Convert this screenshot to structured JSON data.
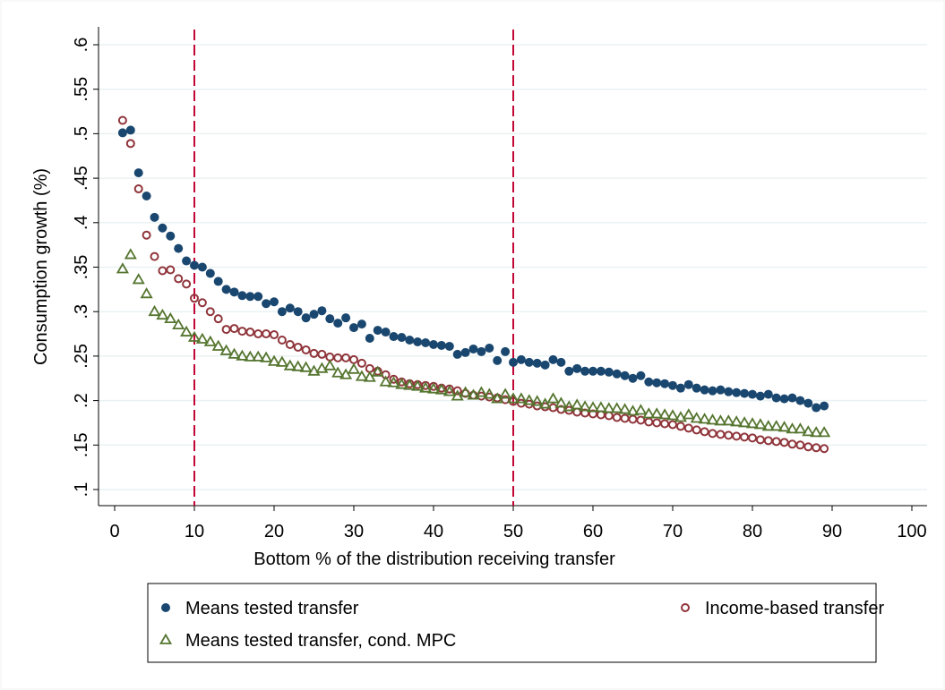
{
  "chart_data": {
    "type": "scatter",
    "x_label": "Bottom % of the distribution receiving transfer",
    "y_label": "Consumption growth (%)",
    "x": [
      1,
      2,
      3,
      4,
      5,
      6,
      7,
      8,
      9,
      10,
      11,
      12,
      13,
      14,
      15,
      16,
      17,
      18,
      19,
      20,
      21,
      22,
      23,
      24,
      25,
      26,
      27,
      28,
      29,
      30,
      31,
      32,
      33,
      34,
      35,
      36,
      37,
      38,
      39,
      40,
      41,
      42,
      43,
      44,
      45,
      46,
      47,
      48,
      49,
      50,
      51,
      52,
      53,
      54,
      55,
      56,
      57,
      58,
      59,
      60,
      61,
      62,
      63,
      64,
      65,
      66,
      67,
      68,
      69,
      70,
      71,
      72,
      73,
      74,
      75,
      76,
      77,
      78,
      79,
      80,
      81,
      82,
      83,
      84,
      85,
      86,
      87,
      88,
      89
    ],
    "series": [
      {
        "name": "Means tested transfer",
        "color": "#1a476f",
        "marker": "circle",
        "values": [
          0.501,
          0.504,
          0.456,
          0.43,
          0.406,
          0.394,
          0.385,
          0.371,
          0.357,
          0.352,
          0.35,
          0.343,
          0.334,
          0.325,
          0.322,
          0.318,
          0.317,
          0.317,
          0.309,
          0.311,
          0.3,
          0.304,
          0.3,
          0.293,
          0.297,
          0.301,
          0.292,
          0.287,
          0.293,
          0.282,
          0.286,
          0.27,
          0.279,
          0.277,
          0.272,
          0.271,
          0.268,
          0.266,
          0.265,
          0.263,
          0.262,
          0.261,
          0.252,
          0.254,
          0.258,
          0.255,
          0.259,
          0.245,
          0.255,
          0.243,
          0.246,
          0.243,
          0.242,
          0.24,
          0.246,
          0.243,
          0.233,
          0.236,
          0.233,
          0.233,
          0.233,
          0.232,
          0.23,
          0.228,
          0.225,
          0.228,
          0.221,
          0.22,
          0.219,
          0.217,
          0.214,
          0.218,
          0.214,
          0.212,
          0.211,
          0.212,
          0.21,
          0.209,
          0.208,
          0.207,
          0.205,
          0.207,
          0.203,
          0.202,
          0.203,
          0.2,
          0.197,
          0.192,
          0.194
        ]
      },
      {
        "name": "Income-based transfer",
        "color": "#90353b",
        "marker": "hollow-circle",
        "values": [
          0.515,
          0.489,
          0.438,
          0.386,
          0.362,
          0.346,
          0.347,
          0.337,
          0.331,
          0.315,
          0.31,
          0.3,
          0.292,
          0.28,
          0.281,
          0.278,
          0.277,
          0.275,
          0.275,
          0.274,
          0.268,
          0.263,
          0.26,
          0.257,
          0.253,
          0.252,
          0.249,
          0.248,
          0.248,
          0.246,
          0.242,
          0.236,
          0.233,
          0.229,
          0.224,
          0.221,
          0.219,
          0.218,
          0.217,
          0.216,
          0.214,
          0.213,
          0.211,
          0.208,
          0.206,
          0.205,
          0.204,
          0.203,
          0.201,
          0.199,
          0.197,
          0.196,
          0.194,
          0.193,
          0.192,
          0.19,
          0.189,
          0.187,
          0.186,
          0.185,
          0.184,
          0.183,
          0.181,
          0.18,
          0.179,
          0.178,
          0.176,
          0.175,
          0.174,
          0.173,
          0.171,
          0.169,
          0.167,
          0.165,
          0.163,
          0.162,
          0.161,
          0.16,
          0.159,
          0.158,
          0.156,
          0.155,
          0.154,
          0.153,
          0.151,
          0.15,
          0.148,
          0.147,
          0.146
        ]
      },
      {
        "name": "Means tested transfer, cond. MPC",
        "color": "#55752f",
        "marker": "hollow-triangle",
        "values": [
          0.348,
          0.364,
          0.336,
          0.32,
          0.3,
          0.296,
          0.292,
          0.285,
          0.277,
          0.271,
          0.269,
          0.266,
          0.261,
          0.256,
          0.252,
          0.25,
          0.249,
          0.249,
          0.248,
          0.244,
          0.243,
          0.239,
          0.238,
          0.237,
          0.233,
          0.236,
          0.239,
          0.231,
          0.229,
          0.235,
          0.227,
          0.226,
          0.232,
          0.221,
          0.22,
          0.218,
          0.217,
          0.216,
          0.214,
          0.213,
          0.212,
          0.21,
          0.205,
          0.209,
          0.206,
          0.209,
          0.207,
          0.202,
          0.207,
          0.202,
          0.202,
          0.2,
          0.199,
          0.196,
          0.202,
          0.197,
          0.193,
          0.195,
          0.193,
          0.192,
          0.192,
          0.191,
          0.191,
          0.19,
          0.188,
          0.189,
          0.185,
          0.185,
          0.184,
          0.183,
          0.181,
          0.184,
          0.18,
          0.179,
          0.178,
          0.177,
          0.177,
          0.176,
          0.175,
          0.174,
          0.173,
          0.171,
          0.171,
          0.17,
          0.168,
          0.168,
          0.165,
          0.164,
          0.164
        ]
      }
    ],
    "xlim": [
      0,
      100
    ],
    "xticks": [
      0,
      10,
      20,
      30,
      40,
      50,
      60,
      70,
      80,
      90,
      100
    ],
    "ylim": [
      0.1,
      0.6
    ],
    "yticks": [
      {
        "value": 0.1,
        "label": ".1"
      },
      {
        "value": 0.15,
        "label": ".15"
      },
      {
        "value": 0.2,
        "label": ".2"
      },
      {
        "value": 0.25,
        "label": ".25"
      },
      {
        "value": 0.3,
        "label": ".3"
      },
      {
        "value": 0.35,
        "label": ".35"
      },
      {
        "value": 0.4,
        "label": ".4"
      },
      {
        "value": 0.45,
        "label": ".45"
      },
      {
        "value": 0.5,
        "label": ".5"
      },
      {
        "value": 0.55,
        "label": ".55"
      },
      {
        "value": 0.6,
        "label": ".6"
      }
    ],
    "grid": true,
    "vlines": [
      10,
      50
    ],
    "vline_color": "#c10534",
    "legend": "bottom"
  }
}
